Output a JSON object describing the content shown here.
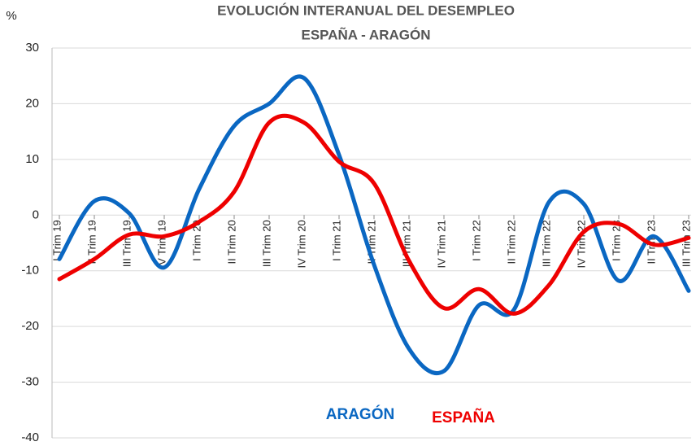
{
  "chart_data": {
    "type": "line",
    "title": [
      "EVOLUCIÓN INTERANUAL DEL DESEMPLEO",
      "ESPAÑA - ARAGÓN"
    ],
    "y_label": "%",
    "categories": [
      "I Trim 19",
      "II Trim 19",
      "III Trim 19",
      "IV Trim 19",
      "I Trim 20",
      "II Trim 20",
      "III Trim 20",
      "IV Trim 20",
      "I Trim 21",
      "II Trim 21",
      "III Trim 21",
      "IV Trim 21",
      "I Trim 22",
      "II Trim 22",
      "III Trim 22",
      "IV Trim 22",
      "I Trim 23",
      "II Trim 23",
      "III Trim 23"
    ],
    "series": [
      {
        "name": "ARAGÓN",
        "color": "#0a67c2",
        "values": [
          -7.9,
          2.5,
          0.3,
          -9.4,
          4.7,
          16,
          20,
          24.6,
          10.8,
          -8.9,
          -24,
          -28,
          -16.2,
          -17,
          2.3,
          2,
          -11.8,
          -3.8,
          -13.6
        ]
      },
      {
        "name": "ESPAÑA",
        "color": "#ee0000",
        "values": [
          -11.5,
          -7.9,
          -3.5,
          -3.8,
          -1.2,
          4.2,
          16.6,
          16.6,
          9.6,
          5.7,
          -8.2,
          -16.7,
          -13.3,
          -17.7,
          -12.6,
          -3,
          -1.6,
          -5.3,
          -4.1
        ]
      }
    ],
    "ylim": [
      -40,
      30
    ],
    "yticks": [
      -40,
      -30,
      -20,
      -10,
      0,
      10,
      20,
      30
    ],
    "grid": true
  }
}
